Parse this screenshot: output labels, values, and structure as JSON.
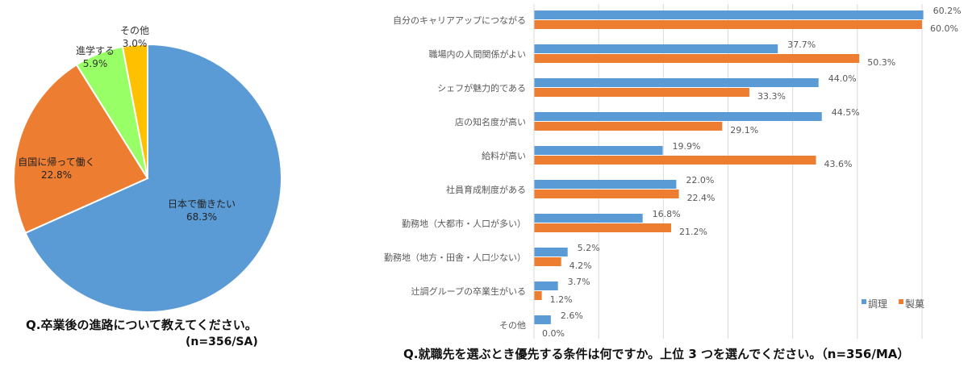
{
  "chart_data": [
    {
      "type": "pie",
      "title": "Q.卒業後の進路について教えてください。",
      "subtitle": "(n=356/SA)",
      "slices": [
        {
          "label": "日本で働きたい",
          "value": 68.3,
          "value_label": "68.3%",
          "color": "#5b9bd5"
        },
        {
          "label": "自国に帰って働く",
          "value": 22.8,
          "value_label": "22.8%",
          "color": "#ed7d31"
        },
        {
          "label": "進学する",
          "value": 5.9,
          "value_label": "5.9%",
          "color": "#99ff66"
        },
        {
          "label": "その他",
          "value": 3.0,
          "value_label": "3.0%",
          "color": "#ffc000"
        }
      ]
    },
    {
      "type": "bar",
      "orientation": "horizontal",
      "title": "Q.就職先を選ぶとき優先する条件は何ですか。上位 3 つを選んでください。（n=356/MA）",
      "categories": [
        "自分のキャリアアップにつながる",
        "職場内の人間関係がよい",
        "シェフが魅力的である",
        "店の知名度が高い",
        "給料が高い",
        "社員育成制度がある",
        "勤務地（大都市・人口が多い）",
        "勤務地（地方・田舎・人口少ない）",
        "辻調グループの卒業生がいる",
        "その他"
      ],
      "series": [
        {
          "name": "調理",
          "color": "#5b9bd5",
          "values": [
            60.2,
            37.7,
            44.0,
            44.5,
            19.9,
            22.0,
            16.8,
            5.2,
            3.7,
            2.6
          ],
          "labels": [
            "60.2%",
            "37.7%",
            "44.0%",
            "44.5%",
            "19.9%",
            "22.0%",
            "16.8%",
            "5.2%",
            "3.7%",
            "2.6%"
          ]
        },
        {
          "name": "製菓",
          "color": "#ed7d31",
          "values": [
            60.0,
            50.3,
            33.3,
            29.1,
            43.6,
            22.4,
            21.2,
            4.2,
            1.2,
            0.0
          ],
          "labels": [
            "60.0%",
            "50.3%",
            "33.3%",
            "29.1%",
            "43.6%",
            "22.4%",
            "21.2%",
            "4.2%",
            "1.2%",
            "0.0%"
          ]
        }
      ],
      "xlim": [
        0,
        60
      ],
      "grid": true,
      "grid_step": 10,
      "legend": "bottom-right"
    }
  ]
}
